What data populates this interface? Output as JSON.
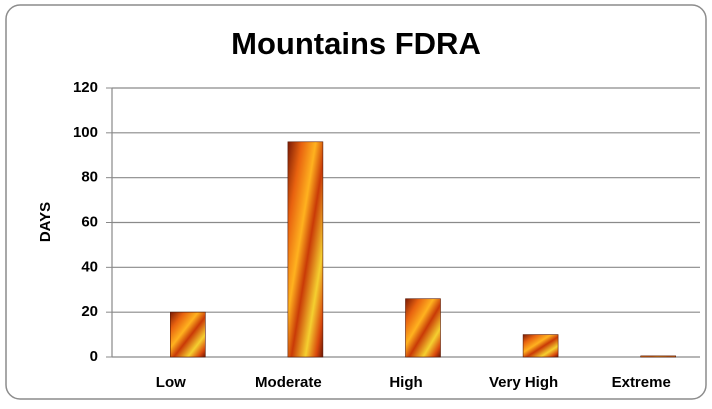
{
  "chart_data": {
    "type": "bar",
    "title": "Mountains FDRA",
    "y_label": "DAYS",
    "categories": [
      "Low",
      "Moderate",
      "High",
      "Very High",
      "Extreme"
    ],
    "values": [
      20,
      96,
      26,
      10,
      0.5
    ],
    "color": "#e8620f",
    "ylim": [
      0,
      120
    ],
    "yticks": [
      0,
      20,
      40,
      60,
      80,
      100,
      120
    ],
    "grid": true
  }
}
